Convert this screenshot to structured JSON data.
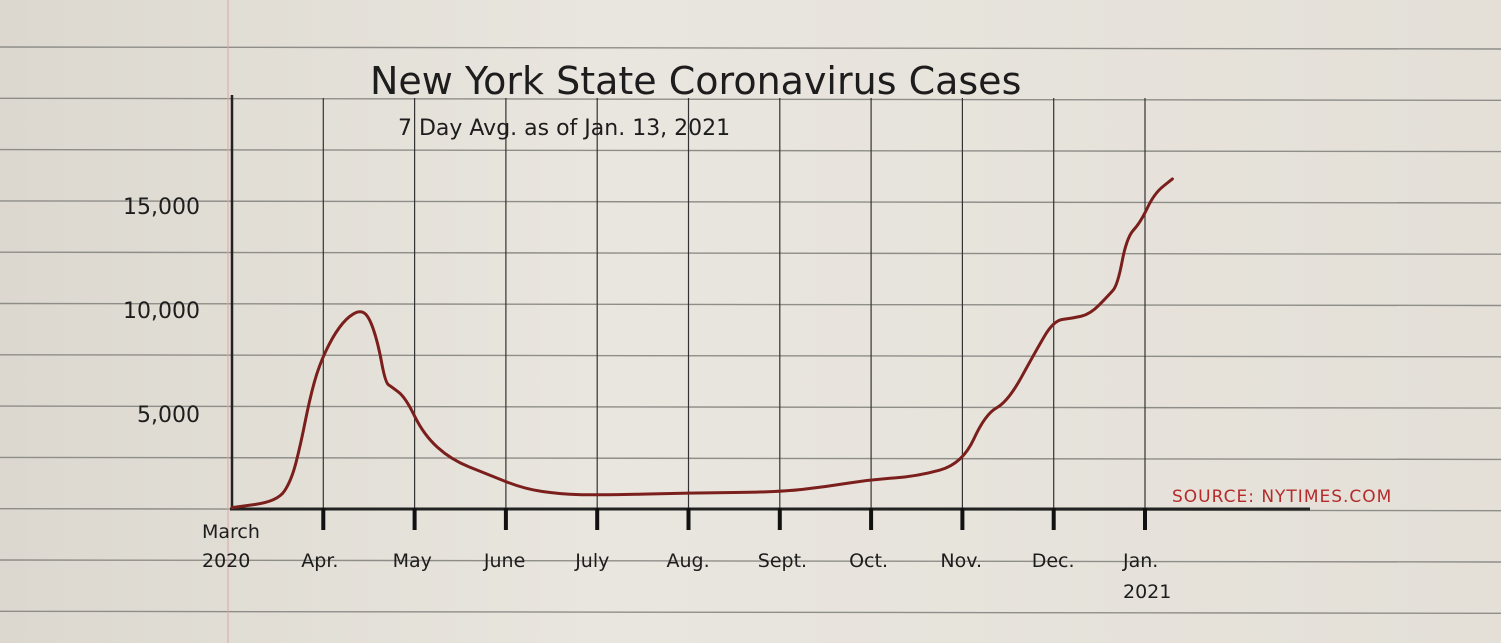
{
  "chart_data": {
    "type": "line",
    "title": "New York State Coronavirus Cases",
    "subtitle": "7 Day Avg. as of Jan. 13, 2021",
    "source": "SOURCE: NYTIMES.COM",
    "xlabel": "",
    "ylabel": "",
    "x_unit": "months since March 1, 2020",
    "xlim": [
      0,
      10.5
    ],
    "ylim": [
      0,
      17000
    ],
    "y_ticks": [
      {
        "value": 5000,
        "label": "5,000"
      },
      {
        "value": 10000,
        "label": "10,000"
      },
      {
        "value": 15000,
        "label": "15,000"
      }
    ],
    "x_ticks": [
      {
        "value": 0,
        "label": "March",
        "label2": "2020"
      },
      {
        "value": 1,
        "label": "Apr."
      },
      {
        "value": 2,
        "label": "May"
      },
      {
        "value": 3,
        "label": "June"
      },
      {
        "value": 4,
        "label": "July"
      },
      {
        "value": 5,
        "label": "Aug."
      },
      {
        "value": 6,
        "label": "Sept."
      },
      {
        "value": 7,
        "label": "Oct."
      },
      {
        "value": 8,
        "label": "Nov."
      },
      {
        "value": 9,
        "label": "Dec."
      },
      {
        "value": 10,
        "label": "Jan.",
        "label2": "2021"
      }
    ],
    "grid": true,
    "series": [
      {
        "name": "7-day average cases",
        "color": "#7a1f1c",
        "x": [
          0,
          0.5,
          0.65,
          0.75,
          0.85,
          0.95,
          1.1,
          1.25,
          1.4,
          1.5,
          1.6,
          1.68,
          1.75,
          1.9,
          2.1,
          2.4,
          2.8,
          3.2,
          3.6,
          4.0,
          5.0,
          6.0,
          6.5,
          7.0,
          7.5,
          8.0,
          8.25,
          8.5,
          8.8,
          9.0,
          9.2,
          9.4,
          9.6,
          9.7,
          9.8,
          9.95,
          10.1,
          10.3
        ],
        "values": [
          500,
          800,
          1800,
          3500,
          5700,
          7300,
          8700,
          9600,
          10000,
          9700,
          8400,
          6500,
          6300,
          5800,
          4000,
          2800,
          2100,
          1400,
          1150,
          1100,
          1200,
          1250,
          1500,
          1850,
          2000,
          2600,
          5000,
          5600,
          8000,
          9500,
          9600,
          9800,
          10700,
          11200,
          13500,
          14200,
          15600,
          16300
        ]
      }
    ]
  }
}
